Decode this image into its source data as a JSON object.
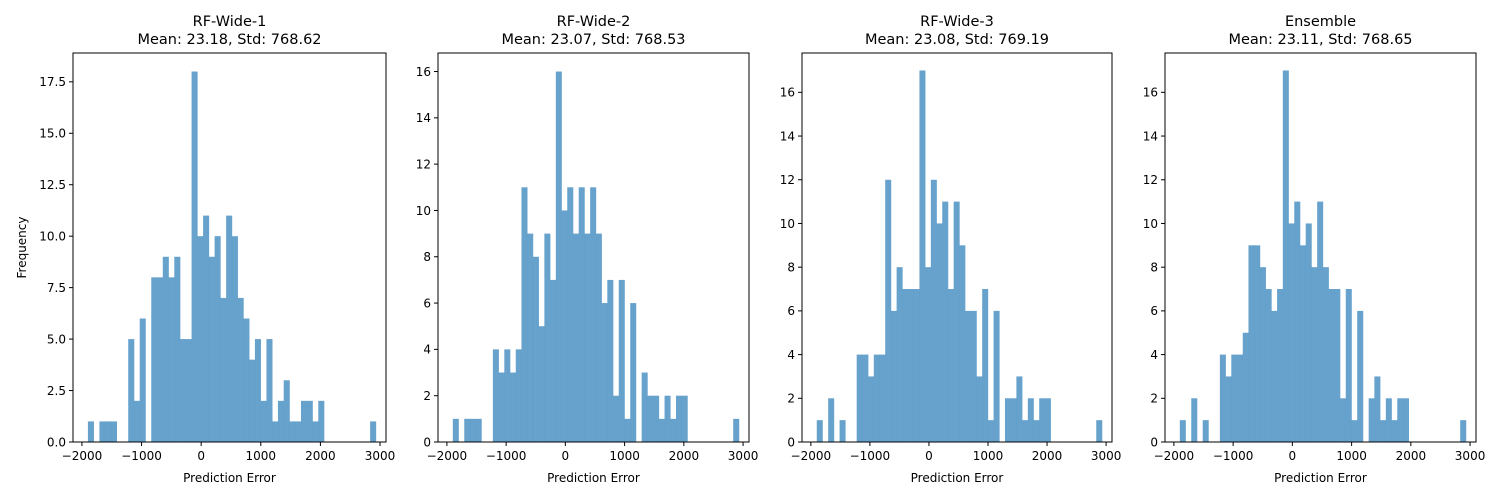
{
  "chart_data": [
    {
      "type": "bar",
      "title": "RF-Wide-1",
      "subtitle": "Mean: 23.18, Std: 768.62",
      "xlabel": "Prediction Error",
      "ylabel": "Frequency",
      "xlim": [
        -2150,
        3100
      ],
      "ylim": [
        0,
        18.9
      ],
      "xticks": [
        -2000,
        -1000,
        0,
        1000,
        2000,
        3000
      ],
      "xtick_labels": [
        "−2000",
        "−1000",
        "0",
        "1000",
        "2000",
        "3000"
      ],
      "yticks": [
        0,
        2.5,
        5,
        7.5,
        10,
        12.5,
        15,
        17.5
      ],
      "ytick_labels": [
        "0.0",
        "2.5",
        "5.0",
        "7.5",
        "10.0",
        "12.5",
        "15.0",
        "17.5"
      ],
      "bin_start": -1900,
      "bin_width": 96.6,
      "counts": [
        1,
        0,
        1,
        1,
        1,
        0,
        0,
        5,
        2,
        6,
        0,
        8,
        8,
        9,
        8,
        9,
        5,
        5,
        18,
        10,
        11,
        9,
        10,
        7,
        11,
        10,
        7,
        6,
        4,
        5,
        2,
        5,
        1,
        2,
        3,
        1,
        1,
        2,
        2,
        1,
        2,
        0,
        0,
        0,
        0,
        0,
        0,
        0,
        0,
        1
      ]
    },
    {
      "type": "bar",
      "title": "RF-Wide-2",
      "subtitle": "Mean: 23.07, Std: 768.53",
      "xlabel": "Prediction Error",
      "ylabel": "",
      "xlim": [
        -2150,
        3100
      ],
      "ylim": [
        0,
        16.8
      ],
      "xticks": [
        -2000,
        -1000,
        0,
        1000,
        2000,
        3000
      ],
      "xtick_labels": [
        "−2000",
        "−1000",
        "0",
        "1000",
        "2000",
        "3000"
      ],
      "yticks": [
        0,
        2,
        4,
        6,
        8,
        10,
        12,
        14,
        16
      ],
      "ytick_labels": [
        "0",
        "2",
        "4",
        "6",
        "8",
        "10",
        "12",
        "14",
        "16"
      ],
      "bin_start": -1900,
      "bin_width": 96.6,
      "counts": [
        1,
        0,
        1,
        1,
        1,
        0,
        0,
        4,
        3,
        4,
        3,
        4,
        11,
        9,
        8,
        5,
        9,
        7,
        16,
        10,
        11,
        9,
        11,
        9,
        11,
        9,
        6,
        7,
        2,
        7,
        1,
        6,
        0,
        3,
        2,
        2,
        1,
        2,
        1,
        2,
        2,
        0,
        0,
        0,
        0,
        0,
        0,
        0,
        0,
        1
      ]
    },
    {
      "type": "bar",
      "title": "RF-Wide-3",
      "subtitle": "Mean: 23.08, Std: 769.19",
      "xlabel": "Prediction Error",
      "ylabel": "",
      "xlim": [
        -2150,
        3100
      ],
      "ylim": [
        0,
        17.8
      ],
      "xticks": [
        -2000,
        -1000,
        0,
        1000,
        2000,
        3000
      ],
      "xtick_labels": [
        "−2000",
        "−1000",
        "0",
        "1000",
        "2000",
        "3000"
      ],
      "yticks": [
        0,
        2,
        4,
        6,
        8,
        10,
        12,
        14,
        16
      ],
      "ytick_labels": [
        "0",
        "2",
        "4",
        "6",
        "8",
        "10",
        "12",
        "14",
        "16"
      ],
      "bin_start": -1900,
      "bin_width": 96.6,
      "counts": [
        1,
        0,
        2,
        0,
        1,
        0,
        0,
        4,
        4,
        3,
        4,
        4,
        12,
        6,
        8,
        7,
        7,
        7,
        17,
        8,
        12,
        10,
        11,
        7,
        11,
        9,
        6,
        6,
        3,
        7,
        1,
        6,
        0,
        2,
        2,
        3,
        1,
        2,
        1,
        2,
        2,
        0,
        0,
        0,
        0,
        0,
        0,
        0,
        0,
        1
      ]
    },
    {
      "type": "bar",
      "title": "Ensemble",
      "subtitle": "Mean: 23.11, Std: 768.65",
      "xlabel": "Prediction Error",
      "ylabel": "",
      "xlim": [
        -2150,
        3100
      ],
      "ylim": [
        0,
        17.8
      ],
      "xticks": [
        -2000,
        -1000,
        0,
        1000,
        2000,
        3000
      ],
      "xtick_labels": [
        "−2000",
        "−1000",
        "0",
        "1000",
        "2000",
        "3000"
      ],
      "yticks": [
        0,
        2,
        4,
        6,
        8,
        10,
        12,
        14,
        16
      ],
      "ytick_labels": [
        "0",
        "2",
        "4",
        "6",
        "8",
        "10",
        "12",
        "14",
        "16"
      ],
      "bin_start": -1900,
      "bin_width": 96.6,
      "counts": [
        1,
        0,
        2,
        0,
        1,
        0,
        0,
        4,
        3,
        4,
        4,
        5,
        9,
        9,
        8,
        7,
        6,
        7,
        17,
        10,
        11,
        9,
        10,
        8,
        11,
        8,
        7,
        7,
        2,
        7,
        1,
        6,
        0,
        2,
        3,
        1,
        2,
        1,
        2,
        2,
        0,
        0,
        0,
        0,
        0,
        0,
        0,
        0,
        0,
        1
      ]
    }
  ],
  "style": {
    "bar_color": "#5b9bc9",
    "bar_opacity": 0.93,
    "axis_color": "#000000",
    "background": "#ffffff"
  }
}
